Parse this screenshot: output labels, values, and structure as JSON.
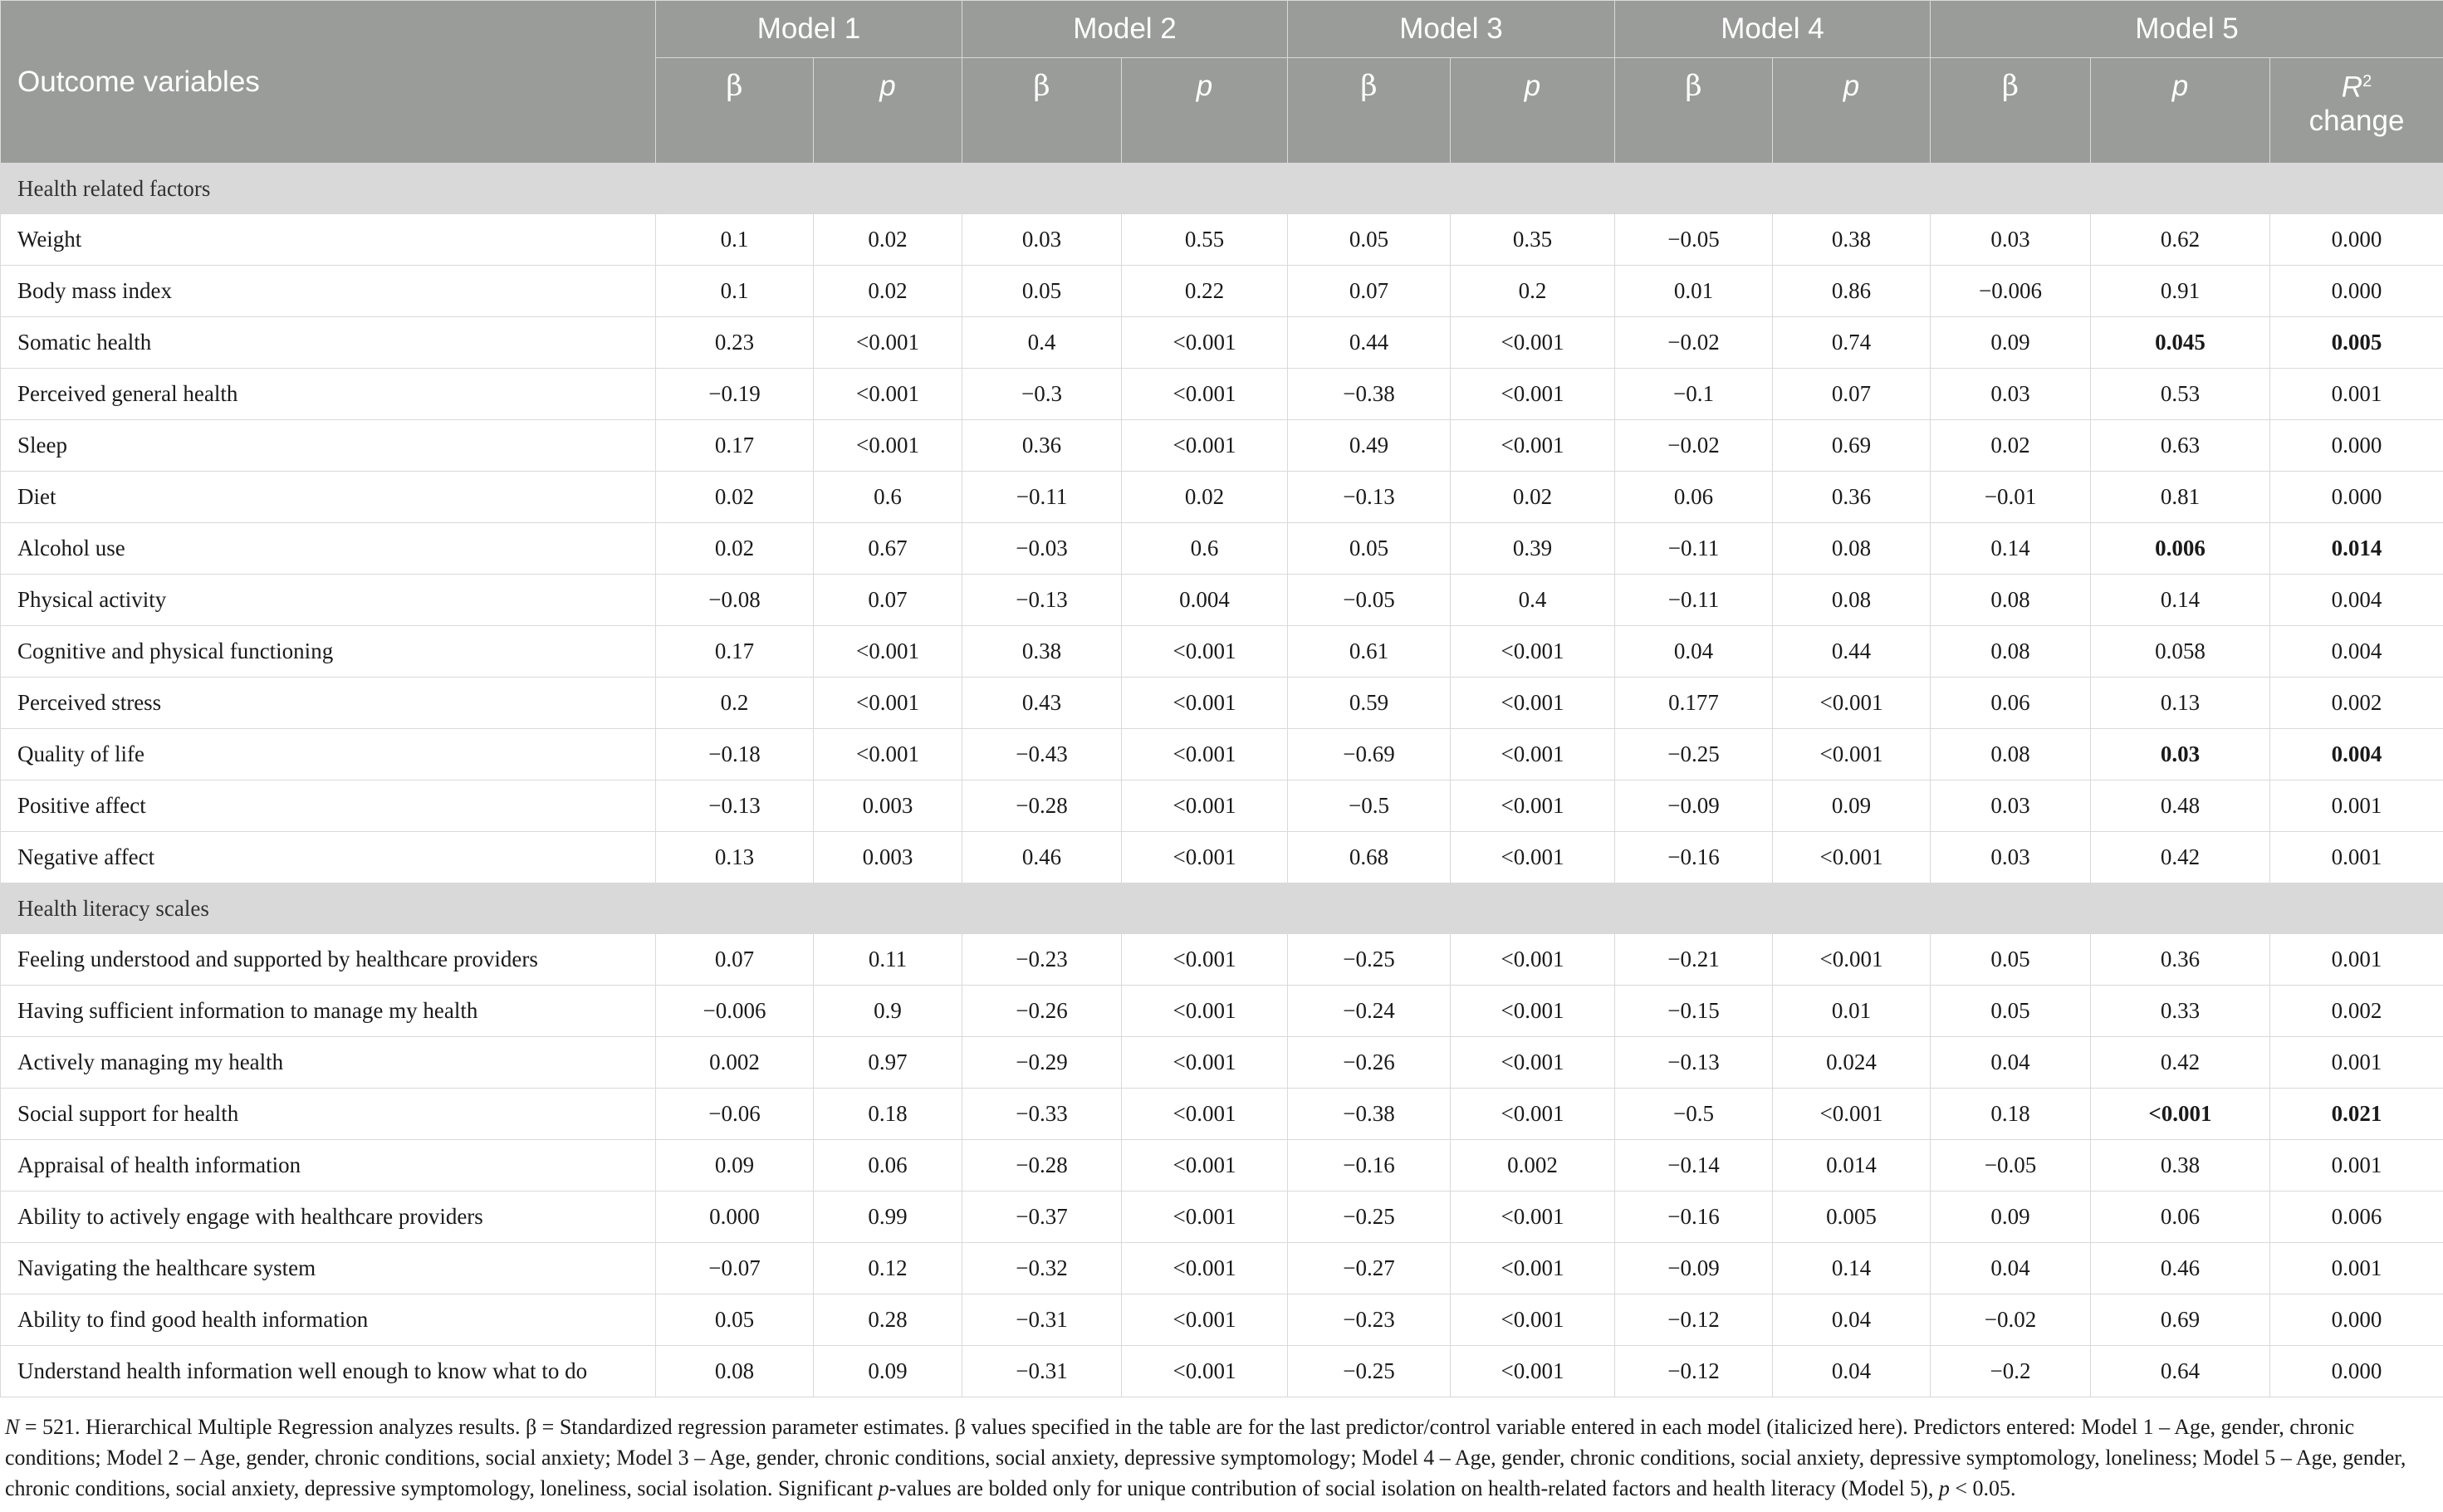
{
  "header": {
    "outcome_label": "Outcome variables",
    "models": [
      "Model 1",
      "Model 2",
      "Model 3",
      "Model 4",
      "Model 5"
    ],
    "beta": "β",
    "p": "p",
    "r2_label": "R",
    "r2_sup": "2",
    "r2_change": "change"
  },
  "sections": [
    {
      "title": "Health related factors",
      "rows": [
        {
          "label": "Weight",
          "values": [
            "0.1",
            "0.02",
            "0.03",
            "0.55",
            "0.05",
            "0.35",
            "−0.05",
            "0.38",
            "0.03",
            "0.62",
            "0.000"
          ],
          "bold": []
        },
        {
          "label": "Body mass index",
          "values": [
            "0.1",
            "0.02",
            "0.05",
            "0.22",
            "0.07",
            "0.2",
            "0.01",
            "0.86",
            "−0.006",
            "0.91",
            "0.000"
          ],
          "bold": []
        },
        {
          "label": "Somatic health",
          "values": [
            "0.23",
            "<0.001",
            "0.4",
            "<0.001",
            "0.44",
            "<0.001",
            "−0.02",
            "0.74",
            "0.09",
            "0.045",
            "0.005"
          ],
          "bold": [
            9,
            10
          ]
        },
        {
          "label": "Perceived general health",
          "values": [
            "−0.19",
            "<0.001",
            "−0.3",
            "<0.001",
            "−0.38",
            "<0.001",
            "−0.1",
            "0.07",
            "0.03",
            "0.53",
            "0.001"
          ],
          "bold": []
        },
        {
          "label": "Sleep",
          "values": [
            "0.17",
            "<0.001",
            "0.36",
            "<0.001",
            "0.49",
            "<0.001",
            "−0.02",
            "0.69",
            "0.02",
            "0.63",
            "0.000"
          ],
          "bold": []
        },
        {
          "label": "Diet",
          "values": [
            "0.02",
            "0.6",
            "−0.11",
            "0.02",
            "−0.13",
            "0.02",
            "0.06",
            "0.36",
            "−0.01",
            "0.81",
            "0.000"
          ],
          "bold": []
        },
        {
          "label": "Alcohol use",
          "values": [
            "0.02",
            "0.67",
            "−0.03",
            "0.6",
            "0.05",
            "0.39",
            "−0.11",
            "0.08",
            "0.14",
            "0.006",
            "0.014"
          ],
          "bold": [
            9,
            10
          ]
        },
        {
          "label": "Physical activity",
          "values": [
            "−0.08",
            "0.07",
            "−0.13",
            "0.004",
            "−0.05",
            "0.4",
            "−0.11",
            "0.08",
            "0.08",
            "0.14",
            "0.004"
          ],
          "bold": []
        },
        {
          "label": "Cognitive and physical functioning",
          "values": [
            "0.17",
            "<0.001",
            "0.38",
            "<0.001",
            "0.61",
            "<0.001",
            "0.04",
            "0.44",
            "0.08",
            "0.058",
            "0.004"
          ],
          "bold": []
        },
        {
          "label": "Perceived stress",
          "values": [
            "0.2",
            "<0.001",
            "0.43",
            "<0.001",
            "0.59",
            "<0.001",
            "0.177",
            "<0.001",
            "0.06",
            "0.13",
            "0.002"
          ],
          "bold": []
        },
        {
          "label": "Quality of life",
          "values": [
            "−0.18",
            "<0.001",
            "−0.43",
            "<0.001",
            "−0.69",
            "<0.001",
            "−0.25",
            "<0.001",
            "0.08",
            "0.03",
            "0.004"
          ],
          "bold": [
            9,
            10
          ]
        },
        {
          "label": "Positive affect",
          "values": [
            "−0.13",
            "0.003",
            "−0.28",
            "<0.001",
            "−0.5",
            "<0.001",
            "−0.09",
            "0.09",
            "0.03",
            "0.48",
            "0.001"
          ],
          "bold": []
        },
        {
          "label": "Negative affect",
          "values": [
            "0.13",
            "0.003",
            "0.46",
            "<0.001",
            "0.68",
            "<0.001",
            "−0.16",
            "<0.001",
            "0.03",
            "0.42",
            "0.001"
          ],
          "bold": []
        }
      ]
    },
    {
      "title": "Health literacy scales",
      "rows": [
        {
          "label": "Feeling understood and supported by healthcare providers",
          "values": [
            "0.07",
            "0.11",
            "−0.23",
            "<0.001",
            "−0.25",
            "<0.001",
            "−0.21",
            "<0.001",
            "0.05",
            "0.36",
            "0.001"
          ],
          "bold": []
        },
        {
          "label": "Having sufficient information to manage my health",
          "values": [
            "−0.006",
            "0.9",
            "−0.26",
            "<0.001",
            "−0.24",
            "<0.001",
            "−0.15",
            "0.01",
            "0.05",
            "0.33",
            "0.002"
          ],
          "bold": []
        },
        {
          "label": "Actively managing my health",
          "values": [
            "0.002",
            "0.97",
            "−0.29",
            "<0.001",
            "−0.26",
            "<0.001",
            "−0.13",
            "0.024",
            "0.04",
            "0.42",
            "0.001"
          ],
          "bold": []
        },
        {
          "label": "Social support for health",
          "values": [
            "−0.06",
            "0.18",
            "−0.33",
            "<0.001",
            "−0.38",
            "<0.001",
            "−0.5",
            "<0.001",
            "0.18",
            "<0.001",
            "0.021"
          ],
          "bold": [
            9,
            10
          ]
        },
        {
          "label": "Appraisal of health information",
          "values": [
            "0.09",
            "0.06",
            "−0.28",
            "<0.001",
            "−0.16",
            "0.002",
            "−0.14",
            "0.014",
            "−0.05",
            "0.38",
            "0.001"
          ],
          "bold": []
        },
        {
          "label": "Ability to actively engage with healthcare providers",
          "values": [
            "0.000",
            "0.99",
            "−0.37",
            "<0.001",
            "−0.25",
            "<0.001",
            "−0.16",
            "0.005",
            "0.09",
            "0.06",
            "0.006"
          ],
          "bold": []
        },
        {
          "label": "Navigating the healthcare system",
          "values": [
            "−0.07",
            "0.12",
            "−0.32",
            "<0.001",
            "−0.27",
            "<0.001",
            "−0.09",
            "0.14",
            "0.04",
            "0.46",
            "0.001"
          ],
          "bold": []
        },
        {
          "label": "Ability to find good health information",
          "values": [
            "0.05",
            "0.28",
            "−0.31",
            "<0.001",
            "−0.23",
            "<0.001",
            "−0.12",
            "0.04",
            "−0.02",
            "0.69",
            "0.000"
          ],
          "bold": []
        },
        {
          "label": "Understand health information well enough to know what to do",
          "values": [
            "0.08",
            "0.09",
            "−0.31",
            "<0.001",
            "−0.25",
            "<0.001",
            "−0.12",
            "0.04",
            "−0.2",
            "0.64",
            "0.000"
          ],
          "bold": []
        }
      ]
    }
  ],
  "footnote": {
    "n_label": "N",
    "n_text": " = 521. Hierarchical Multiple Regression analyzes results. β = Standardized regression parameter estimates. β values specified in the table are for the last predictor/control variable entered in each model (italicized here). Predictors entered: Model 1 – Age, gender, chronic conditions; Model 2 – Age, gender, chronic conditions, social anxiety; Model 3 – Age, gender, chronic conditions, social anxiety, depressive symptomology; Model 4 – Age, gender, chronic conditions, social anxiety, depressive symptomology, loneliness; Model 5 – Age, gender, chronic conditions, social anxiety, depressive symptomology, loneliness, social isolation. Significant ",
    "p_label": "p",
    "mid_text": "-values are bolded only for unique contribution of social isolation on health-related factors and health literacy (Model 5), ",
    "p_label2": "p",
    "end_text": " < 0.05."
  }
}
